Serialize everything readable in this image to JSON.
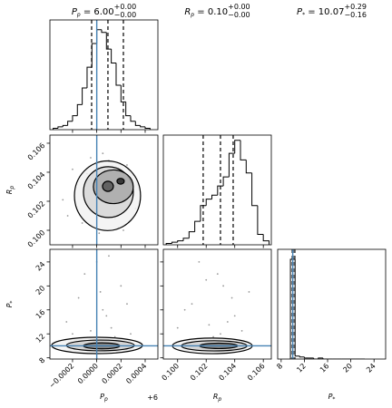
{
  "chart_data": [
    {
      "type": "histogram",
      "title": {
        "symbol": "P",
        "sub": "p",
        "text": " = 6.00",
        "upper": "+0.00",
        "lower": "−0.00"
      },
      "bins": [
        -0.00036,
        -0.00032,
        -0.00028,
        -0.00024,
        -0.0002,
        -0.00016,
        -0.00012,
        -8e-05,
        -4e-05,
        0,
        4e-05,
        8e-05,
        0.00012,
        0.00016,
        0.0002,
        0.00024,
        0.00028,
        0.00032,
        0.00036,
        0.0004,
        0.00044
      ],
      "counts": [
        1,
        2,
        3,
        6,
        10,
        18,
        30,
        45,
        62,
        72,
        70,
        58,
        48,
        32,
        20,
        10,
        6,
        3,
        2,
        1
      ],
      "quantiles": [
        -4.24e-05,
        9.24e-05,
        0.00022
      ],
      "truth_x": 0,
      "xlim": [
        -0.000387,
        0.000505
      ],
      "ylim": [
        0,
        79
      ],
      "xticks": [
        -0.0002,
        0,
        0.0002,
        0.0004
      ],
      "color": "#000000",
      "truth_color": "#4682b4"
    },
    {
      "type": "contour",
      "ylabel": {
        "symbol": "R",
        "sub": "p"
      },
      "points": {
        "x": [
          -0.00028,
          -0.0002,
          -0.00012,
          -5e-05,
          2e-05,
          0.0001,
          0.00018,
          0.00025,
          0.00032,
          -0.00024,
          0.0003,
          0.00015,
          -8e-05,
          0.00022,
          5e-05
        ],
        "y": [
          0.1021,
          0.1042,
          0.1005,
          0.105,
          0.0998,
          0.1048,
          0.1002,
          0.1045,
          0.1015,
          0.101,
          0.1038,
          0.1008,
          0.1039,
          0.1,
          0.1053
        ]
      },
      "contours": [
        {
          "cx": 8.86e-05,
          "cy": 0.10238,
          "rx": 0.000273,
          "ry": 0.0024,
          "fill": "#f2f2f2"
        },
        {
          "cx": 9.6e-05,
          "cy": 0.10263,
          "rx": 0.000206,
          "ry": 0.00175,
          "fill": "#d6d6d6"
        },
        {
          "cx": 0.000137,
          "cy": 0.103,
          "rx": 0.000165,
          "ry": 0.00116,
          "fill": "#a8a8a8"
        },
        {
          "cx": 9.24e-05,
          "cy": 0.10303,
          "rx": 4.5e-05,
          "ry": 0.00035,
          "fill": "#555555"
        },
        {
          "cx": 0.000197,
          "cy": 0.10338,
          "rx": 3e-05,
          "ry": 0.0002,
          "fill": "#222222"
        }
      ],
      "truth_x": 0,
      "xlim": [
        -0.000387,
        0.000505
      ],
      "ylim": [
        0.099,
        0.10656
      ],
      "xticks": [
        -0.0002,
        0,
        0.0002,
        0.0004
      ],
      "yticks": [
        {
          "value": 0.1,
          "label": "0.100"
        },
        {
          "value": 0.102,
          "label": "0.102"
        },
        {
          "value": 0.104,
          "label": "0.104"
        },
        {
          "value": 0.106,
          "label": "0.106"
        }
      ],
      "point_color": "#999999",
      "truth_color": "#4682b4"
    },
    {
      "type": "histogram",
      "title": {
        "symbol": "R",
        "sub": "p",
        "text": " = 0.10",
        "upper": "+0.00",
        "lower": "−0.00"
      },
      "bins": [
        0.0992,
        0.0996,
        0.1,
        0.1004,
        0.1008,
        0.1012,
        0.1016,
        0.102,
        0.1024,
        0.1028,
        0.1032,
        0.1036,
        0.104,
        0.1044,
        0.1048,
        0.1052,
        0.1056,
        0.106,
        0.1064
      ],
      "counts": [
        1,
        2,
        3,
        5,
        10,
        18,
        30,
        35,
        38,
        45,
        52,
        70,
        80,
        65,
        55,
        30,
        8,
        3
      ],
      "quantiles": [
        0.10179,
        0.103,
        0.10389
      ],
      "xlim": [
        0.099,
        0.10656
      ],
      "ylim": [
        0,
        84
      ],
      "xticks": [
        0.1,
        0.102,
        0.104,
        0.106
      ],
      "color": "#000000"
    },
    {
      "type": "contour",
      "xlabel": {
        "symbol": "P",
        "sub": "p"
      },
      "offset_text": "+6",
      "ylabel": {
        "symbol": "P",
        "sub": "*"
      },
      "points": {
        "x": [
          -0.00025,
          -0.00015,
          -5e-05,
          0,
          5e-05,
          0.00012,
          0.0002,
          0.00028,
          -0.0001,
          8e-05,
          0.00015,
          3e-05,
          -0.0002,
          0.00025,
          0.0001
        ],
        "y": [
          14,
          18,
          12.5,
          24,
          16,
          13,
          20,
          12,
          22,
          15,
          11.5,
          19,
          12,
          17,
          25
        ]
      },
      "contours": [
        {
          "cx": 2.5e-06,
          "cy": 10.07,
          "rx": 0.000375,
          "ry": 1.36,
          "fill": "#f2f2f2"
        },
        {
          "cx": 3e-05,
          "cy": 10.07,
          "rx": 0.00028,
          "ry": 0.9,
          "fill": "#cfcfcf"
        },
        {
          "cx": 4e-05,
          "cy": 10.0,
          "rx": 0.00015,
          "ry": 0.5,
          "fill": "#777777"
        }
      ],
      "truth_x": 0,
      "truth_y": 10,
      "xlim": [
        -0.000387,
        0.000505
      ],
      "ylim": [
        7.8,
        26.1
      ],
      "xticks": [
        {
          "value": -0.0002,
          "label": "−0.0002"
        },
        {
          "value": 0,
          "label": "0.0000"
        },
        {
          "value": 0.0002,
          "label": "0.0002"
        },
        {
          "value": 0.0004,
          "label": "0.0004"
        }
      ],
      "yticks": [
        8,
        12,
        16,
        20,
        24
      ],
      "point_color": "#999999",
      "truth_color": "#4682b4"
    },
    {
      "type": "contour",
      "xlabel": {
        "symbol": "R",
        "sub": "p"
      },
      "points": {
        "x": [
          0.1,
          0.101,
          0.102,
          0.103,
          0.104,
          0.105,
          0.1015,
          0.1025,
          0.1035,
          0.1045,
          0.1005,
          0.1028,
          0.1038,
          0.1022,
          0.1032
        ],
        "y": [
          13,
          17,
          21,
          12,
          15,
          19,
          24,
          11.5,
          14,
          12.5,
          16,
          22,
          18,
          13.5,
          20
        ]
      },
      "contours": [
        {
          "cx": 0.10243,
          "cy": 10.0,
          "rx": 0.00279,
          "ry": 1.3,
          "fill": "#f2f2f2"
        },
        {
          "cx": 0.10256,
          "cy": 10.0,
          "rx": 0.00229,
          "ry": 0.85,
          "fill": "#cfcfcf"
        },
        {
          "cx": 0.10287,
          "cy": 10.0,
          "rx": 0.00133,
          "ry": 0.45,
          "fill": "#777777"
        }
      ],
      "truth_y": 10,
      "xlim": [
        0.099,
        0.10656
      ],
      "ylim": [
        7.8,
        26.1
      ],
      "xticks": [
        {
          "value": 0.1,
          "label": "0.100"
        },
        {
          "value": 0.102,
          "label": "0.102"
        },
        {
          "value": 0.104,
          "label": "0.104"
        },
        {
          "value": 0.106,
          "label": "0.106"
        }
      ],
      "yticks": [
        8,
        12,
        16,
        20,
        24
      ],
      "point_color": "#999999",
      "truth_color": "#4682b4"
    },
    {
      "type": "histogram",
      "title": {
        "symbol": "P",
        "sub": "*",
        "text": " = 10.07",
        "upper": "+0.29",
        "lower": "−0.16"
      },
      "xlabel": {
        "symbol": "P",
        "sub": "*"
      },
      "bins": [
        9.6,
        10.4,
        11.2,
        12,
        12.8,
        13.6,
        14.4,
        15.2,
        16,
        16.8,
        17.6,
        18.4,
        19.2,
        20,
        20.8,
        21.6,
        22.4
      ],
      "counts": [
        100,
        3,
        2,
        1,
        1,
        0,
        1,
        0,
        0,
        0,
        0,
        0,
        0,
        0,
        0,
        0
      ],
      "quantiles": [
        9.91,
        10.07,
        10.36
      ],
      "truth_x": 10,
      "xlim": [
        7.4,
        26.0
      ],
      "ylim": [
        0,
        110
      ],
      "xticks": [
        8,
        12,
        16,
        20,
        24
      ],
      "color": "#000000",
      "truth_color": "#4682b4"
    }
  ]
}
